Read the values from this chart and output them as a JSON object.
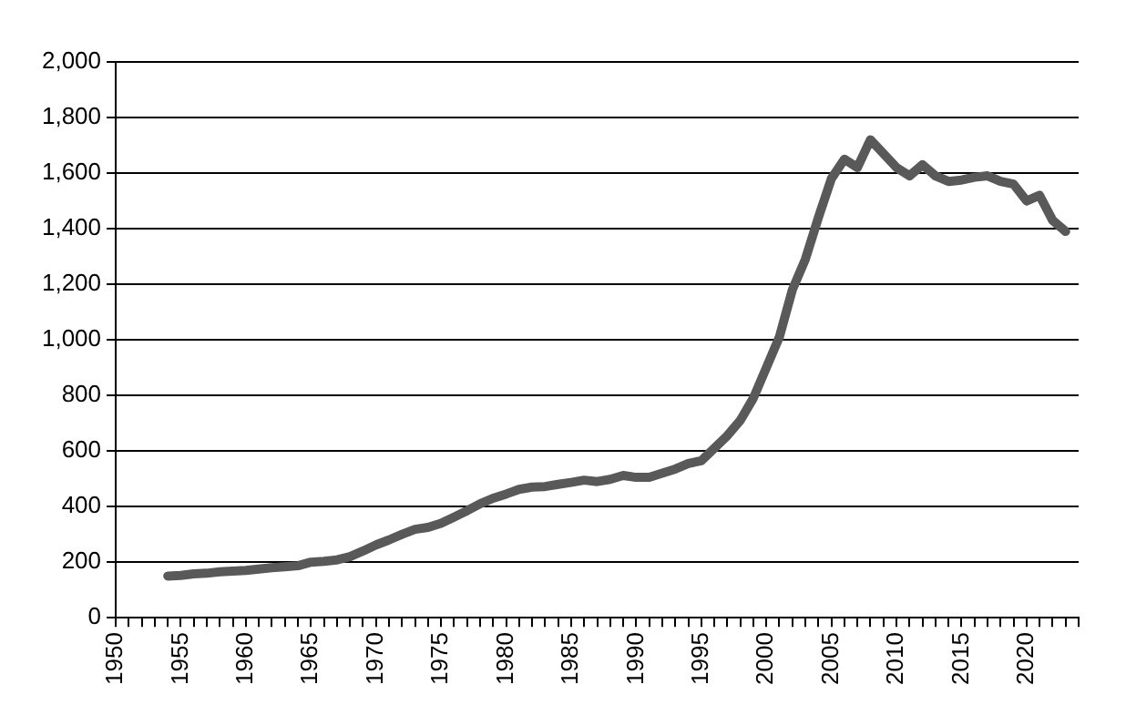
{
  "chart_data": {
    "type": "line",
    "x": [
      1954,
      1955,
      1956,
      1957,
      1958,
      1959,
      1960,
      1961,
      1962,
      1963,
      1964,
      1965,
      1966,
      1967,
      1968,
      1969,
      1970,
      1971,
      1972,
      1973,
      1974,
      1975,
      1976,
      1977,
      1978,
      1979,
      1980,
      1981,
      1982,
      1983,
      1984,
      1985,
      1986,
      1987,
      1988,
      1989,
      1990,
      1991,
      1992,
      1993,
      1994,
      1995,
      1996,
      1997,
      1998,
      1999,
      2000,
      2001,
      2002,
      2003,
      2004,
      2005,
      2006,
      2007,
      2008,
      2009,
      2010,
      2011,
      2012,
      2013,
      2014,
      2015,
      2016,
      2017,
      2018,
      2019,
      2020,
      2021,
      2022,
      2023
    ],
    "series": [
      {
        "color": "#595959",
        "values": [
          150,
          152,
          158,
          160,
          165,
          168,
          170,
          175,
          180,
          183,
          187,
          200,
          203,
          208,
          220,
          240,
          262,
          280,
          300,
          318,
          325,
          340,
          362,
          385,
          410,
          430,
          445,
          462,
          470,
          472,
          480,
          487,
          495,
          490,
          498,
          512,
          505,
          505,
          520,
          535,
          555,
          565,
          610,
          655,
          710,
          790,
          900,
          1010,
          1180,
          1290,
          1440,
          1580,
          1650,
          1620,
          1720,
          1670,
          1620,
          1590,
          1630,
          1590,
          1570,
          1575,
          1585,
          1590,
          1570,
          1560,
          1500,
          1520,
          1430,
          1390
        ]
      }
    ],
    "xlim": [
      1950,
      2024
    ],
    "xticks": [
      1950,
      {
        "value": 1951,
        "label": null
      },
      {
        "value": 1952,
        "label": null
      },
      {
        "value": 1953,
        "label": null
      },
      {
        "value": 1954,
        "label": null
      },
      1955,
      {
        "value": 1956,
        "label": null
      },
      {
        "value": 1957,
        "label": null
      },
      {
        "value": 1958,
        "label": null
      },
      {
        "value": 1959,
        "label": null
      },
      1960,
      {
        "value": 1961,
        "label": null
      },
      {
        "value": 1962,
        "label": null
      },
      {
        "value": 1963,
        "label": null
      },
      {
        "value": 1964,
        "label": null
      },
      1965,
      {
        "value": 1966,
        "label": null
      },
      {
        "value": 1967,
        "label": null
      },
      {
        "value": 1968,
        "label": null
      },
      {
        "value": 1969,
        "label": null
      },
      1970,
      {
        "value": 1971,
        "label": null
      },
      {
        "value": 1972,
        "label": null
      },
      {
        "value": 1973,
        "label": null
      },
      {
        "value": 1974,
        "label": null
      },
      1975,
      {
        "value": 1976,
        "label": null
      },
      {
        "value": 1977,
        "label": null
      },
      {
        "value": 1978,
        "label": null
      },
      {
        "value": 1979,
        "label": null
      },
      1980,
      {
        "value": 1981,
        "label": null
      },
      {
        "value": 1982,
        "label": null
      },
      {
        "value": 1983,
        "label": null
      },
      {
        "value": 1984,
        "label": null
      },
      1985,
      {
        "value": 1986,
        "label": null
      },
      {
        "value": 1987,
        "label": null
      },
      {
        "value": 1988,
        "label": null
      },
      {
        "value": 1989,
        "label": null
      },
      1990,
      {
        "value": 1991,
        "label": null
      },
      {
        "value": 1992,
        "label": null
      },
      {
        "value": 1993,
        "label": null
      },
      {
        "value": 1994,
        "label": null
      },
      1995,
      {
        "value": 1996,
        "label": null
      },
      {
        "value": 1997,
        "label": null
      },
      {
        "value": 1998,
        "label": null
      },
      {
        "value": 1999,
        "label": null
      },
      2000,
      {
        "value": 2001,
        "label": null
      },
      {
        "value": 2002,
        "label": null
      },
      {
        "value": 2003,
        "label": null
      },
      {
        "value": 2004,
        "label": null
      },
      2005,
      {
        "value": 2006,
        "label": null
      },
      {
        "value": 2007,
        "label": null
      },
      {
        "value": 2008,
        "label": null
      },
      {
        "value": 2009,
        "label": null
      },
      2010,
      {
        "value": 2011,
        "label": null
      },
      {
        "value": 2012,
        "label": null
      },
      {
        "value": 2013,
        "label": null
      },
      {
        "value": 2014,
        "label": null
      },
      2015,
      {
        "value": 2016,
        "label": null
      },
      {
        "value": 2017,
        "label": null
      },
      {
        "value": 2018,
        "label": null
      },
      {
        "value": 2019,
        "label": null
      },
      2020,
      {
        "value": 2021,
        "label": null
      },
      {
        "value": 2022,
        "label": null
      },
      {
        "value": 2023,
        "label": null
      },
      {
        "value": 2024,
        "label": null
      }
    ],
    "ylim": [
      0,
      2000
    ],
    "yticks": [
      0,
      {
        "value": 200,
        "label": "200"
      },
      {
        "value": 400,
        "label": "400"
      },
      {
        "value": 600,
        "label": "600"
      },
      {
        "value": 800,
        "label": "800"
      },
      {
        "value": 1000,
        "label": "1,000"
      },
      {
        "value": 1200,
        "label": "1,200"
      },
      {
        "value": 1400,
        "label": "1,400"
      },
      {
        "value": 1600,
        "label": "1,600"
      },
      {
        "value": 1800,
        "label": "1,800"
      },
      {
        "value": 2000,
        "label": "2,000"
      }
    ],
    "grid": "y",
    "legend": false,
    "marker": "none",
    "line_style": "solid"
  }
}
